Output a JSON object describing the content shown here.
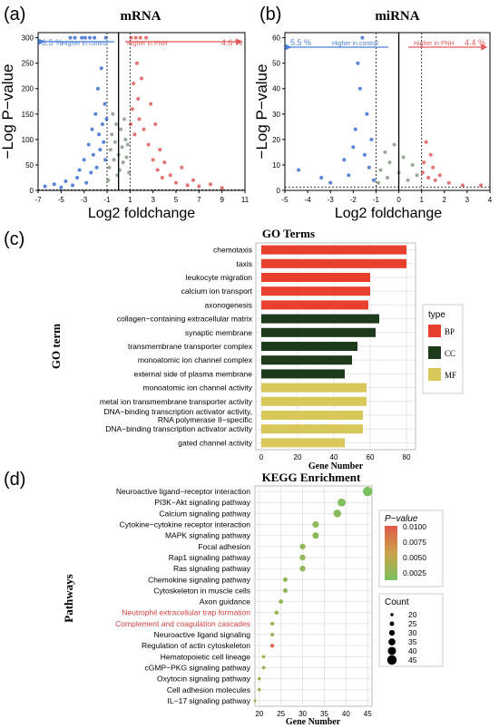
{
  "panel_labels": [
    "(a)",
    "(b)",
    "(c)",
    "(d)"
  ],
  "chart_data": [
    {
      "type": "scatter",
      "title": "mRNA",
      "ylabel": "−Log P−value",
      "xlabel": "Log2 foldchange",
      "xlim": [
        -7,
        11
      ],
      "ylim": [
        0,
        310
      ],
      "xticks": [
        "-7",
        "-5",
        "-3",
        "-1",
        "1",
        "3",
        "5",
        "7",
        "9",
        "11"
      ],
      "yticks": [
        "0",
        "50",
        "100",
        "150",
        "200",
        "250",
        "300"
      ],
      "thresholds": {
        "x": [
          -1,
          1
        ],
        "y": 1.3
      },
      "annotations": {
        "left_pct": "3.5 %",
        "left_text": "Higher in control",
        "right_pct": "4.6 %",
        "right_text": "Higher in PNH"
      },
      "colors": {
        "down": "#3b6fd4",
        "ns": "#8a9a8a",
        "up": "#e05a5a"
      },
      "series": [
        {
          "class": "down",
          "points": [
            [
              -6.4,
              8
            ],
            [
              -5.6,
              12
            ],
            [
              -5.0,
              6
            ],
            [
              -4.6,
              18
            ],
            [
              -4.2,
              300
            ],
            [
              -4.0,
              10
            ],
            [
              -3.8,
              300
            ],
            [
              -3.6,
              25
            ],
            [
              -3.4,
              40
            ],
            [
              -3.2,
              300
            ],
            [
              -3.0,
              60
            ],
            [
              -2.9,
              300
            ],
            [
              -2.8,
              15
            ],
            [
              -2.6,
              90
            ],
            [
              -2.5,
              300
            ],
            [
              -2.4,
              35
            ],
            [
              -2.3,
              120
            ],
            [
              -2.2,
              70
            ],
            [
              -2.1,
              300
            ],
            [
              -2.0,
              150
            ],
            [
              -1.9,
              45
            ],
            [
              -1.8,
              200
            ],
            [
              -1.7,
              110
            ],
            [
              -1.6,
              80
            ],
            [
              -1.5,
              240
            ],
            [
              -1.4,
              130
            ],
            [
              -1.3,
              95
            ],
            [
              -1.2,
              170
            ],
            [
              -1.15,
              60
            ],
            [
              -1.1,
              300
            ],
            [
              -1.05,
              140
            ]
          ]
        },
        {
          "class": "ns",
          "points": [
            [
              -0.9,
              20
            ],
            [
              -0.8,
              45
            ],
            [
              -0.7,
              80
            ],
            [
              -0.6,
              110
            ],
            [
              -0.5,
              150
            ],
            [
              -0.4,
              60
            ],
            [
              -0.3,
              95
            ],
            [
              -0.2,
              130
            ],
            [
              -0.1,
              30
            ],
            [
              0,
              70
            ],
            [
              0.1,
              40
            ],
            [
              0.2,
              120
            ],
            [
              0.3,
              85
            ],
            [
              0.4,
              55
            ],
            [
              0.5,
              140
            ],
            [
              0.6,
              100
            ],
            [
              0.7,
              65
            ],
            [
              0.8,
              90
            ],
            [
              0.9,
              35
            ]
          ]
        },
        {
          "class": "up",
          "points": [
            [
              1.05,
              130
            ],
            [
              1.1,
              300
            ],
            [
              1.2,
              160
            ],
            [
              1.3,
              210
            ],
            [
              1.4,
              110
            ],
            [
              1.5,
              300
            ],
            [
              1.6,
              250
            ],
            [
              1.7,
              180
            ],
            [
              1.8,
              140
            ],
            [
              1.9,
              300
            ],
            [
              2.0,
              220
            ],
            [
              2.2,
              120
            ],
            [
              2.4,
              300
            ],
            [
              2.6,
              90
            ],
            [
              2.8,
              170
            ],
            [
              3.0,
              60
            ],
            [
              3.2,
              130
            ],
            [
              3.4,
              40
            ],
            [
              3.6,
              80
            ],
            [
              3.8,
              25
            ],
            [
              4.0,
              55
            ],
            [
              4.5,
              30
            ],
            [
              5.0,
              15
            ],
            [
              5.5,
              45
            ],
            [
              6.0,
              10
            ],
            [
              6.5,
              20
            ],
            [
              7.0,
              8
            ],
            [
              8.0,
              12
            ],
            [
              9.0,
              5
            ]
          ]
        }
      ]
    },
    {
      "type": "scatter",
      "title": "miRNA",
      "ylabel": "−Log P−value",
      "xlabel": "Log2 foldchange",
      "xlim": [
        -5,
        4
      ],
      "ylim": [
        0,
        62
      ],
      "xticks": [
        "-5",
        "-4",
        "-3",
        "-2",
        "-1",
        "0",
        "1",
        "2",
        "3",
        "4"
      ],
      "yticks": [
        "0",
        "10",
        "20",
        "30",
        "40",
        "50",
        "60"
      ],
      "thresholds": {
        "x": [
          -1,
          1
        ],
        "y": 1.3
      },
      "annotations": {
        "left_pct": "5.5 %",
        "left_text": "Higher in control",
        "right_pct": "4.4 %",
        "right_text": "Higher in PNH"
      },
      "colors": {
        "down": "#3b6fd4",
        "ns": "#8a9a8a",
        "up": "#e05a5a"
      },
      "series": [
        {
          "class": "down",
          "points": [
            [
              -4.4,
              8
            ],
            [
              -3.4,
              5
            ],
            [
              -3.0,
              3
            ],
            [
              -2.4,
              12
            ],
            [
              -2.2,
              6
            ],
            [
              -2.0,
              17
            ],
            [
              -1.9,
              24
            ],
            [
              -1.8,
              50
            ],
            [
              -1.7,
              40
            ],
            [
              -1.6,
              60
            ],
            [
              -1.5,
              14
            ],
            [
              -1.4,
              30
            ],
            [
              -1.3,
              9
            ],
            [
              -1.2,
              20
            ],
            [
              -1.1,
              4
            ]
          ]
        },
        {
          "class": "ns",
          "points": [
            [
              -0.9,
              3
            ],
            [
              -0.8,
              8
            ],
            [
              -0.6,
              15
            ],
            [
              -0.5,
              5
            ],
            [
              -0.4,
              11
            ],
            [
              -0.2,
              18
            ],
            [
              0,
              7
            ],
            [
              0.2,
              13
            ],
            [
              0.4,
              4
            ],
            [
              0.6,
              10
            ],
            [
              0.8,
              6
            ]
          ]
        },
        {
          "class": "up",
          "points": [
            [
              1.05,
              7
            ],
            [
              1.1,
              11
            ],
            [
              1.2,
              19
            ],
            [
              1.3,
              5
            ],
            [
              1.4,
              14
            ],
            [
              1.5,
              9
            ],
            [
              1.6,
              4
            ],
            [
              1.8,
              6
            ],
            [
              2.2,
              3
            ],
            [
              2.8,
              2
            ],
            [
              3.6,
              2
            ]
          ]
        }
      ]
    },
    {
      "type": "bar",
      "title": "GO Terms",
      "ylabel": "GO term",
      "xlabel": "Gene Number",
      "xlim": [
        0,
        80
      ],
      "xticks": [
        "0",
        "20",
        "40",
        "60",
        "80"
      ],
      "categories": [
        "chemotaxis",
        "taxis",
        "leukocyte migration",
        "calcium ion transport",
        "axonogenesis",
        "collagen−containing extracellular matrix",
        "synaptic membrane",
        "transmembrane transporter complex",
        "monoatomic ion channel complex",
        "external side of plasma membrane",
        "monoatomic ion channel activity",
        "metal ion transmembrane transporter activity",
        "DNA−binding transcription activator activity, RNA polymerase II−specific",
        "DNA−binding transcription activator activity",
        "gated channel activity"
      ],
      "values": [
        80,
        80,
        60,
        60,
        59,
        65,
        63,
        53,
        50,
        46,
        58,
        58,
        56,
        56,
        46
      ],
      "types": [
        "BP",
        "BP",
        "BP",
        "BP",
        "BP",
        "CC",
        "CC",
        "CC",
        "CC",
        "CC",
        "MF",
        "MF",
        "MF",
        "MF",
        "MF"
      ],
      "legend_title": "type",
      "legend": [
        {
          "name": "BP",
          "color": "#e8402e"
        },
        {
          "name": "CC",
          "color": "#1d3a1a"
        },
        {
          "name": "MF",
          "color": "#d8c85a"
        }
      ]
    },
    {
      "type": "scatter",
      "title": "KEGG Enrichment",
      "ylabel": "Pathways",
      "xlabel": "Gene Number",
      "xlim": [
        19,
        46
      ],
      "xticks": [
        "20",
        "25",
        "30",
        "35",
        "40",
        "45"
      ],
      "categories": [
        "Neuroactive ligand−receptor interaction",
        "PI3K−Akt signaling pathway",
        "Calcium signaling pathway",
        "Cytokine−cytokine receptor interaction",
        "MAPK signaling pathway",
        "Focal adhesion",
        "Rap1 signaling pathway",
        "Ras signaling pathway",
        "Chemokine signaling pathway",
        "Cytoskeleton in muscle cells",
        "Axon guidance",
        "Neutrophil extracellular trap formation",
        "Complement and coagulation cascades",
        "Neuroactive ligand signaling",
        "Regulation of actin cytoskeleton",
        "Hematopoietic cell lineage",
        "cGMP−PKG signaling pathway",
        "Oxytocin signaling pathway",
        "Cell adhesion molecules",
        "IL−17 signaling pathway"
      ],
      "highlighted": [
        "Neutrophil extracellular trap formation",
        "Complement and coagulation cascades"
      ],
      "values": [
        45,
        39,
        38,
        33,
        33,
        30,
        30,
        30,
        26,
        26,
        25,
        24,
        23,
        23,
        23,
        21,
        21,
        20,
        20,
        19
      ],
      "pvalues": [
        0.0005,
        0.0008,
        0.0012,
        0.0015,
        0.0015,
        0.0018,
        0.0018,
        0.0018,
        0.002,
        0.002,
        0.0022,
        0.0024,
        0.0025,
        0.0025,
        0.009,
        0.0028,
        0.003,
        0.003,
        0.0032,
        0.0035
      ],
      "colorbar_title": "P−value",
      "colorbar_ticks": [
        "0.0100",
        "0.0075",
        "0.0050",
        "0.0025"
      ],
      "size_legend_title": "Count",
      "size_legend": [
        "20",
        "25",
        "30",
        "35",
        "40",
        "45"
      ]
    }
  ]
}
